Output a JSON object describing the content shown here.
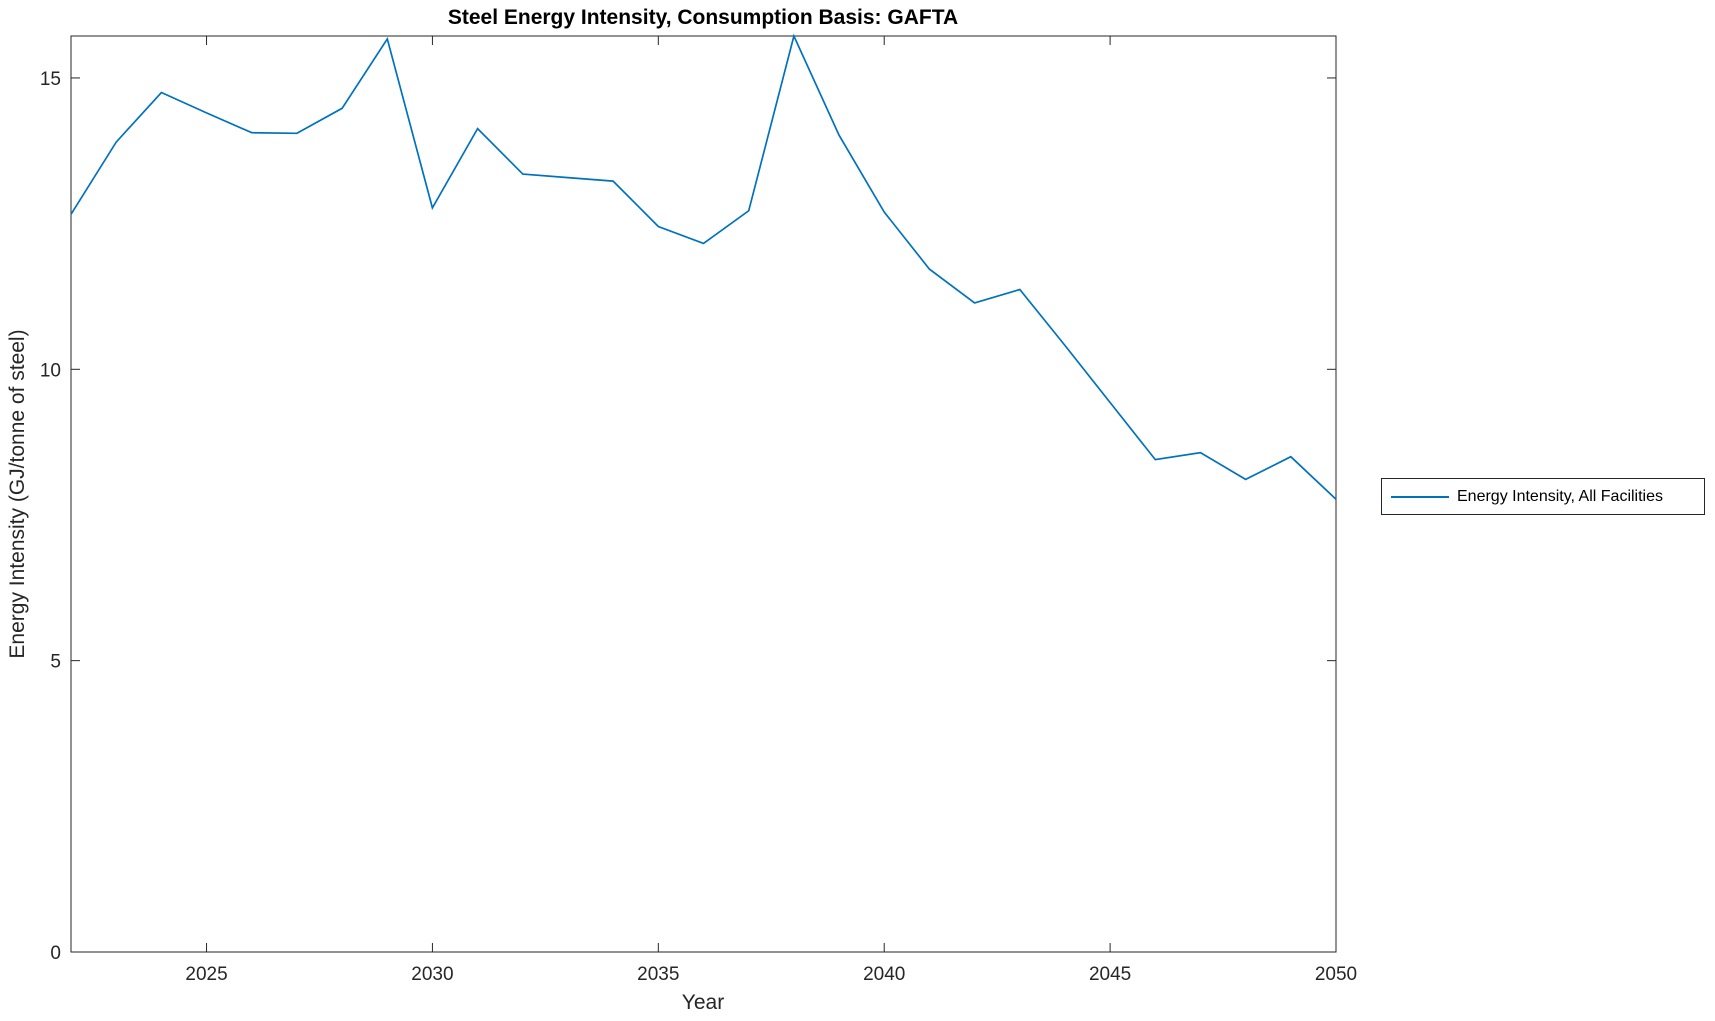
{
  "figure": {
    "title": "Steel Energy Intensity, Consumption Basis: GAFTA",
    "xlabel": "Year",
    "ylabel": "Energy Intensity (GJ/tonne of steel)"
  },
  "legend": {
    "entries": [
      {
        "label": "Energy Intensity, All Facilities",
        "color": "#0072BD"
      }
    ],
    "position": "right-outside"
  },
  "chart_data": {
    "type": "line",
    "title": "Steel Energy Intensity, Consumption Basis: GAFTA",
    "xlabel": "Year",
    "ylabel": "Energy Intensity (GJ/tonne of steel)",
    "x": [
      2022,
      2023,
      2024,
      2025,
      2026,
      2027,
      2028,
      2029,
      2030,
      2031,
      2032,
      2033,
      2034,
      2035,
      2036,
      2037,
      2038,
      2039,
      2040,
      2041,
      2042,
      2043,
      2044,
      2045,
      2046,
      2047,
      2048,
      2049,
      2050
    ],
    "series": [
      {
        "name": "Energy Intensity, All Facilities",
        "color": "#0072BD",
        "values": [
          12.66,
          13.9,
          14.75,
          14.4,
          14.06,
          14.05,
          14.48,
          15.67,
          12.77,
          14.13,
          13.35,
          13.29,
          13.23,
          12.45,
          12.16,
          12.72,
          15.72,
          14.02,
          12.7,
          11.72,
          11.14,
          11.37,
          10.41,
          9.43,
          8.45,
          8.57,
          8.11,
          8.5,
          7.77
        ]
      }
    ],
    "xlim": [
      2022,
      2050
    ],
    "ylim": [
      0,
      15.72
    ],
    "xticks": [
      2025,
      2030,
      2035,
      2040,
      2045,
      2050
    ],
    "yticks": [
      0,
      5,
      10,
      15
    ],
    "grid": false,
    "box": true,
    "axis_color": "#262626",
    "background": "#ffffff",
    "legend_position": "right-outside"
  }
}
